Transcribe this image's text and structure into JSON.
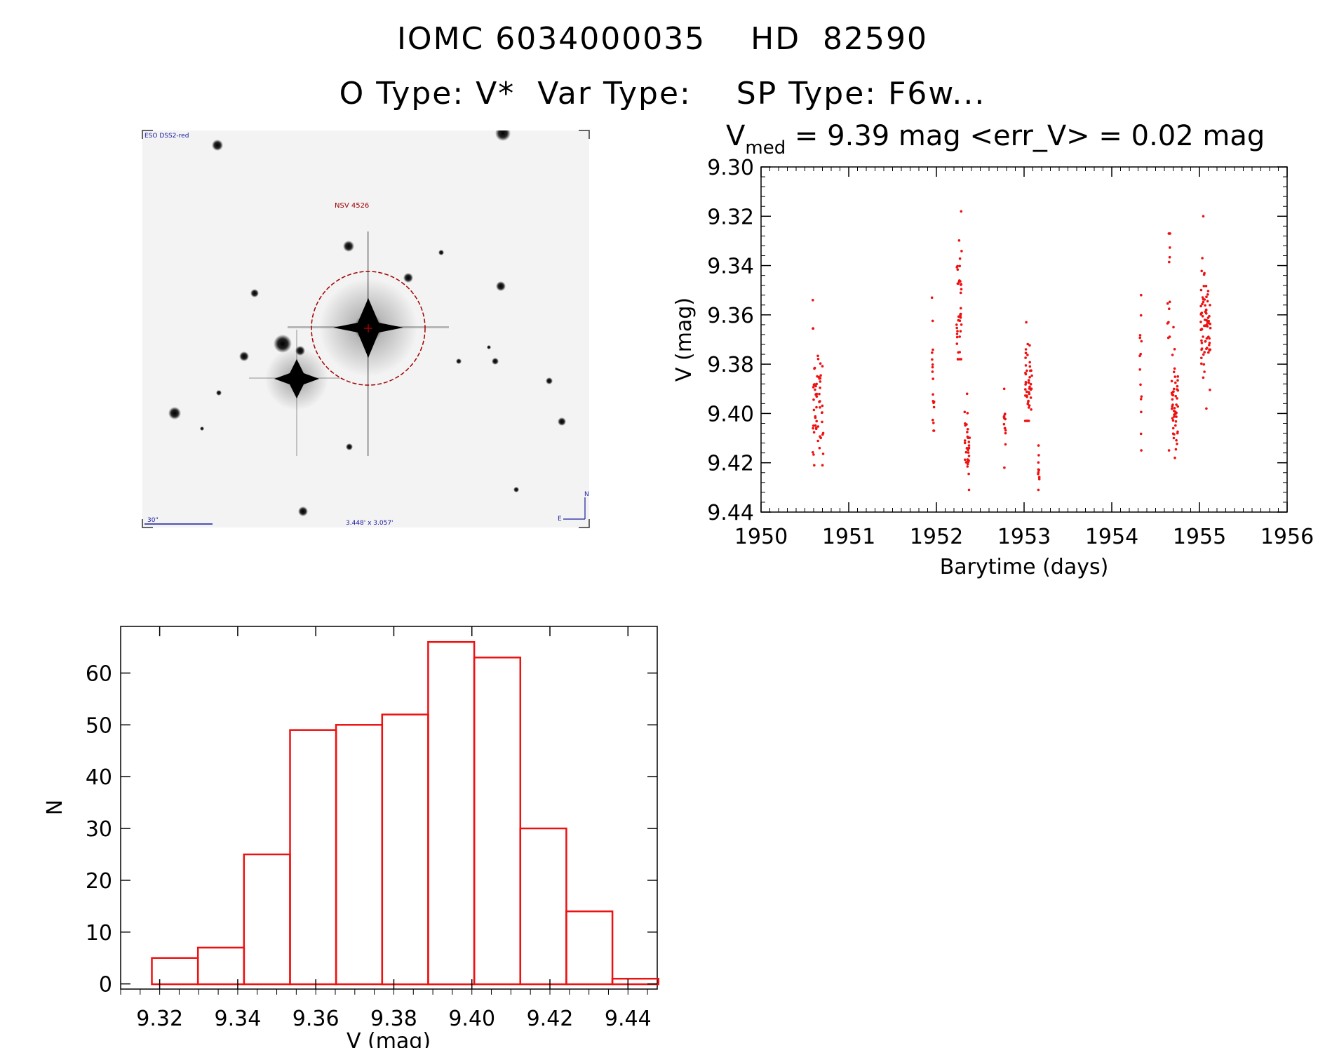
{
  "header": {
    "line1": "IOMC 6034000035    HD  82590",
    "line2": "O Type: V*  Var Type:    SP Type: F6w..."
  },
  "sky_image": {
    "corner_label": "ESO DSS2-red",
    "object_label": "NSV 4526",
    "scale_label": "30\"",
    "size_label": "3.448' x 3.057'",
    "north": "N",
    "east": "E"
  },
  "colors": {
    "data": "#ee1111",
    "axis": "#000000"
  },
  "chart_data": [
    {
      "type": "scatter",
      "title_prefix": "V",
      "title_sub": "med",
      "title_rest": " = 9.39 mag <err_V> = 0.02 mag",
      "xlabel": "Barytime (days)",
      "ylabel": "V (mag)",
      "xlim": [
        1950,
        1956
      ],
      "ylim": [
        9.44,
        9.3
      ],
      "xticks": [
        "1950",
        "1951",
        "1952",
        "1953",
        "1954",
        "1955",
        "1956"
      ],
      "yticks": [
        "9.30",
        "9.32",
        "9.34",
        "9.36",
        "9.38",
        "9.40",
        "9.42",
        "9.44"
      ],
      "clusters": [
        {
          "x": 1950.65,
          "xspread": 0.12,
          "ymin": 9.354,
          "ymax": 9.421,
          "ycenter": 9.393,
          "count": 60
        },
        {
          "x": 1951.96,
          "xspread": 0.03,
          "ymin": 9.353,
          "ymax": 9.407,
          "ycenter": 9.385,
          "count": 18
        },
        {
          "x": 1952.26,
          "xspread": 0.06,
          "ymin": 9.318,
          "ymax": 9.378,
          "ycenter": 9.358,
          "count": 40
        },
        {
          "x": 1952.35,
          "xspread": 0.06,
          "ymin": 9.392,
          "ymax": 9.431,
          "ycenter": 9.412,
          "count": 35
        },
        {
          "x": 1952.78,
          "xspread": 0.02,
          "ymin": 9.39,
          "ymax": 9.422,
          "ycenter": 9.405,
          "count": 14
        },
        {
          "x": 1953.05,
          "xspread": 0.08,
          "ymin": 9.363,
          "ymax": 9.403,
          "ycenter": 9.388,
          "count": 45
        },
        {
          "x": 1953.17,
          "xspread": 0.02,
          "ymin": 9.413,
          "ymax": 9.431,
          "ycenter": 9.422,
          "count": 10
        },
        {
          "x": 1954.33,
          "xspread": 0.02,
          "ymin": 9.352,
          "ymax": 9.415,
          "ycenter": 9.385,
          "count": 14
        },
        {
          "x": 1954.65,
          "xspread": 0.03,
          "ymin": 9.327,
          "ymax": 9.415,
          "ycenter": 9.355,
          "count": 14
        },
        {
          "x": 1954.72,
          "xspread": 0.07,
          "ymin": 9.365,
          "ymax": 9.418,
          "ycenter": 9.395,
          "count": 50
        },
        {
          "x": 1955.07,
          "xspread": 0.11,
          "ymin": 9.32,
          "ymax": 9.398,
          "ycenter": 9.362,
          "count": 75
        }
      ]
    },
    {
      "type": "bar",
      "xlabel": "V (mag)",
      "ylabel": "N",
      "xlim": [
        9.31,
        9.4475
      ],
      "ylim": [
        -1,
        69
      ],
      "xticks": [
        "9.32",
        "9.34",
        "9.36",
        "9.38",
        "9.40",
        "9.42",
        "9.44"
      ],
      "yticks": [
        "0",
        "10",
        "20",
        "30",
        "40",
        "50",
        "60"
      ],
      "bin_edges": [
        9.318,
        9.3298,
        9.3416,
        9.3534,
        9.3652,
        9.377,
        9.3888,
        9.4006,
        9.4124,
        9.4242,
        9.436,
        9.4478
      ],
      "values": [
        5,
        7,
        25,
        49,
        50,
        52,
        66,
        63,
        30,
        14,
        1
      ]
    }
  ]
}
